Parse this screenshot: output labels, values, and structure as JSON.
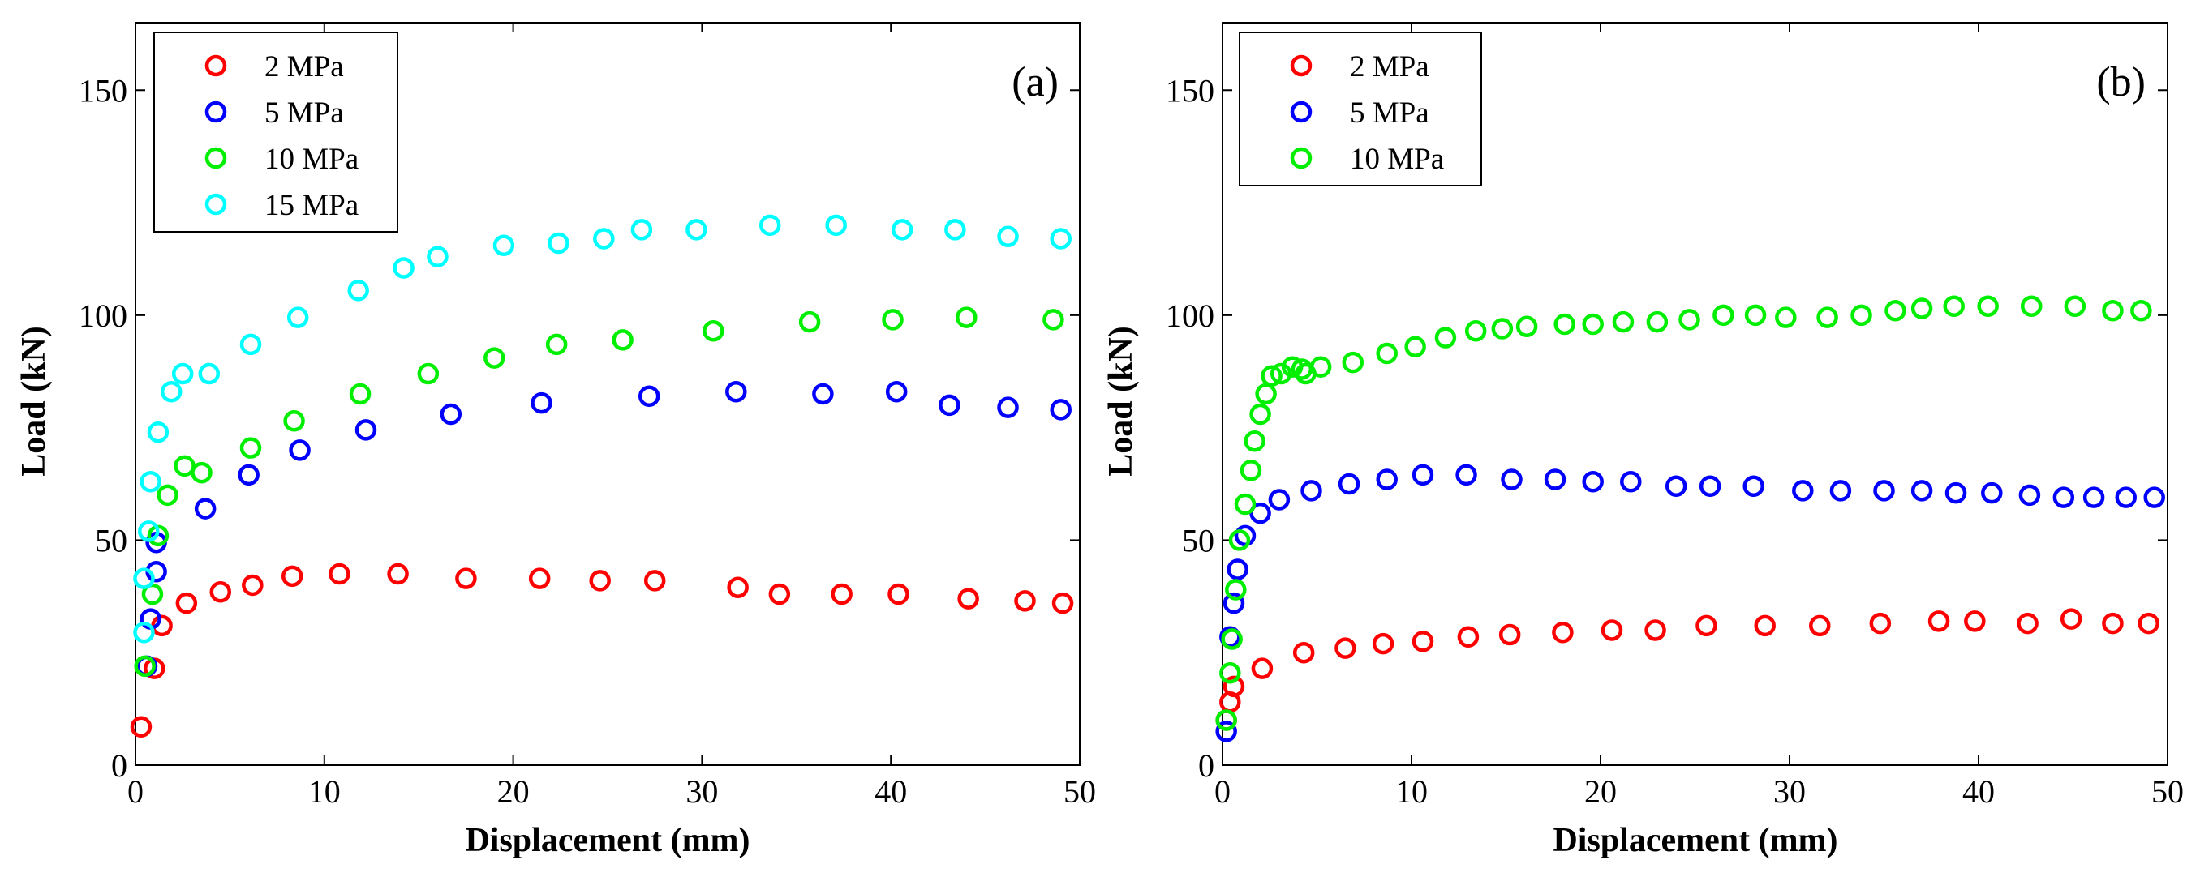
{
  "chart_data": [
    {
      "type": "scatter",
      "panel_label": "(a)",
      "xlabel": "Displacement (mm)",
      "ylabel": "Load (kN)",
      "xlim": [
        0,
        50
      ],
      "ylim": [
        0,
        165
      ],
      "xticks": [
        0,
        10,
        20,
        30,
        40,
        50
      ],
      "yticks": [
        0,
        50,
        100,
        150
      ],
      "grid": false,
      "legend_position": "top-left",
      "series": [
        {
          "name": "2 MPa",
          "color": "#ff0000",
          "points": [
            [
              0.3,
              8.5
            ],
            [
              1.0,
              21.5
            ],
            [
              1.4,
              31.0
            ],
            [
              2.7,
              36.0
            ],
            [
              4.5,
              38.5
            ],
            [
              6.2,
              40.0
            ],
            [
              8.3,
              42.0
            ],
            [
              10.8,
              42.5
            ],
            [
              13.9,
              42.5
            ],
            [
              17.5,
              41.5
            ],
            [
              21.4,
              41.5
            ],
            [
              24.6,
              41.0
            ],
            [
              27.5,
              41.0
            ],
            [
              31.9,
              39.5
            ],
            [
              34.1,
              38.0
            ],
            [
              37.4,
              38.0
            ],
            [
              40.4,
              38.0
            ],
            [
              44.1,
              37.0
            ],
            [
              47.1,
              36.5
            ],
            [
              49.1,
              36.0
            ]
          ]
        },
        {
          "name": "5 MPa",
          "color": "#0000ff",
          "points": [
            [
              0.6,
              22.0
            ],
            [
              0.8,
              32.5
            ],
            [
              1.1,
              43.0
            ],
            [
              1.1,
              49.5
            ],
            [
              3.7,
              57.0
            ],
            [
              6.0,
              64.5
            ],
            [
              8.7,
              70.0
            ],
            [
              12.2,
              74.5
            ],
            [
              16.7,
              78.0
            ],
            [
              21.5,
              80.5
            ],
            [
              27.2,
              82.0
            ],
            [
              31.8,
              83.0
            ],
            [
              36.4,
              82.5
            ],
            [
              40.3,
              83.0
            ],
            [
              43.1,
              80.0
            ],
            [
              46.2,
              79.5
            ],
            [
              49.0,
              79.0
            ]
          ]
        },
        {
          "name": "10 MPa",
          "color": "#00ee00",
          "points": [
            [
              0.5,
              22.0
            ],
            [
              0.9,
              38.0
            ],
            [
              1.2,
              51.0
            ],
            [
              1.7,
              60.0
            ],
            [
              2.6,
              66.5
            ],
            [
              3.5,
              65.0
            ],
            [
              6.1,
              70.5
            ],
            [
              8.4,
              76.5
            ],
            [
              11.9,
              82.5
            ],
            [
              15.5,
              87.0
            ],
            [
              19.0,
              90.5
            ],
            [
              22.3,
              93.5
            ],
            [
              25.8,
              94.5
            ],
            [
              30.6,
              96.5
            ],
            [
              35.7,
              98.5
            ],
            [
              40.1,
              99.0
            ],
            [
              44.0,
              99.5
            ],
            [
              48.6,
              99.0
            ]
          ]
        },
        {
          "name": "15 MPa",
          "color": "#00ffff",
          "points": [
            [
              0.45,
              29.5
            ],
            [
              0.45,
              41.5
            ],
            [
              0.7,
              52.0
            ],
            [
              0.8,
              63.0
            ],
            [
              1.2,
              74.0
            ],
            [
              1.9,
              83.0
            ],
            [
              2.5,
              87.0
            ],
            [
              3.9,
              87.0
            ],
            [
              6.1,
              93.5
            ],
            [
              8.6,
              99.5
            ],
            [
              11.8,
              105.5
            ],
            [
              14.2,
              110.5
            ],
            [
              16.0,
              113.0
            ],
            [
              19.5,
              115.5
            ],
            [
              22.4,
              116.0
            ],
            [
              24.8,
              117.0
            ],
            [
              26.8,
              119.0
            ],
            [
              29.7,
              119.0
            ],
            [
              33.6,
              120.0
            ],
            [
              37.1,
              120.0
            ],
            [
              40.6,
              119.0
            ],
            [
              43.4,
              119.0
            ],
            [
              46.2,
              117.5
            ],
            [
              49.0,
              117.0
            ]
          ]
        }
      ]
    },
    {
      "type": "scatter",
      "panel_label": "(b)",
      "xlabel": "Displacement (mm)",
      "ylabel": "Load (kN)",
      "xlim": [
        0,
        50
      ],
      "ylim": [
        0,
        165
      ],
      "xticks": [
        0,
        10,
        20,
        30,
        40,
        50
      ],
      "yticks": [
        0,
        50,
        100,
        150
      ],
      "grid": false,
      "legend_position": "top-left",
      "series": [
        {
          "name": "2 MPa",
          "color": "#ff0000",
          "points": [
            [
              0.2,
              10.0
            ],
            [
              0.4,
              14.0
            ],
            [
              0.6,
              17.5
            ],
            [
              2.1,
              21.5
            ],
            [
              4.3,
              25.0
            ],
            [
              6.5,
              26.0
            ],
            [
              8.5,
              27.0
            ],
            [
              10.6,
              27.5
            ],
            [
              13.0,
              28.5
            ],
            [
              15.2,
              29.0
            ],
            [
              18.0,
              29.5
            ],
            [
              20.6,
              30.0
            ],
            [
              22.9,
              30.0
            ],
            [
              25.6,
              31.0
            ],
            [
              28.7,
              31.0
            ],
            [
              31.6,
              31.0
            ],
            [
              34.8,
              31.5
            ],
            [
              37.9,
              32.0
            ],
            [
              39.8,
              32.0
            ],
            [
              42.6,
              31.5
            ],
            [
              44.9,
              32.5
            ],
            [
              47.1,
              31.5
            ],
            [
              49.0,
              31.5
            ]
          ]
        },
        {
          "name": "5 MPa",
          "color": "#0000ff",
          "points": [
            [
              0.2,
              7.5
            ],
            [
              0.4,
              28.5
            ],
            [
              0.6,
              36.0
            ],
            [
              0.8,
              43.5
            ],
            [
              1.2,
              51.0
            ],
            [
              2.0,
              56.0
            ],
            [
              3.0,
              59.0
            ],
            [
              4.7,
              61.0
            ],
            [
              6.7,
              62.5
            ],
            [
              8.7,
              63.5
            ],
            [
              10.6,
              64.5
            ],
            [
              12.9,
              64.5
            ],
            [
              15.3,
              63.5
            ],
            [
              17.6,
              63.5
            ],
            [
              19.6,
              63.0
            ],
            [
              21.6,
              63.0
            ],
            [
              24.0,
              62.0
            ],
            [
              25.8,
              62.0
            ],
            [
              28.1,
              62.0
            ],
            [
              30.7,
              61.0
            ],
            [
              32.7,
              61.0
            ],
            [
              35.0,
              61.0
            ],
            [
              37.0,
              61.0
            ],
            [
              38.8,
              60.5
            ],
            [
              40.7,
              60.5
            ],
            [
              42.7,
              60.0
            ],
            [
              44.5,
              59.5
            ],
            [
              46.1,
              59.5
            ],
            [
              47.8,
              59.5
            ],
            [
              49.3,
              59.5
            ]
          ]
        },
        {
          "name": "10 MPa",
          "color": "#00ee00",
          "points": [
            [
              0.2,
              10.0
            ],
            [
              0.4,
              20.5
            ],
            [
              0.5,
              28.0
            ],
            [
              0.7,
              39.0
            ],
            [
              0.9,
              50.0
            ],
            [
              1.2,
              58.0
            ],
            [
              1.5,
              65.5
            ],
            [
              1.7,
              72.0
            ],
            [
              2.0,
              78.0
            ],
            [
              2.3,
              82.5
            ],
            [
              2.6,
              86.5
            ],
            [
              3.1,
              87.0
            ],
            [
              3.7,
              88.5
            ],
            [
              4.2,
              88.0
            ],
            [
              4.4,
              87.0
            ],
            [
              5.2,
              88.5
            ],
            [
              6.9,
              89.5
            ],
            [
              8.7,
              91.5
            ],
            [
              10.2,
              93.0
            ],
            [
              11.8,
              95.0
            ],
            [
              13.4,
              96.5
            ],
            [
              14.8,
              97.0
            ],
            [
              16.1,
              97.5
            ],
            [
              18.1,
              98.0
            ],
            [
              19.6,
              98.0
            ],
            [
              21.2,
              98.5
            ],
            [
              23.0,
              98.5
            ],
            [
              24.7,
              99.0
            ],
            [
              26.5,
              100.0
            ],
            [
              28.2,
              100.0
            ],
            [
              29.8,
              99.5
            ],
            [
              32.0,
              99.5
            ],
            [
              33.8,
              100.0
            ],
            [
              35.6,
              101.0
            ],
            [
              37.0,
              101.5
            ],
            [
              38.7,
              102.0
            ],
            [
              40.5,
              102.0
            ],
            [
              42.8,
              102.0
            ],
            [
              45.1,
              102.0
            ],
            [
              47.1,
              101.0
            ],
            [
              48.6,
              101.0
            ]
          ]
        }
      ]
    }
  ]
}
